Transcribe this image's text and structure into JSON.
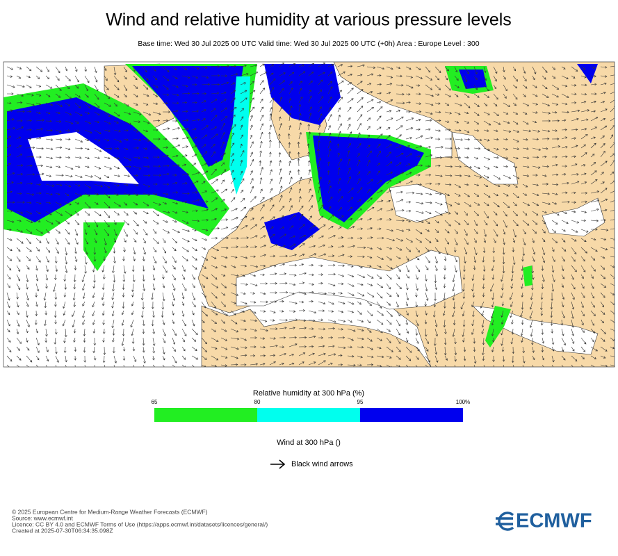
{
  "header": {
    "title": "Wind and relative humidity at various pressure levels",
    "subtitle": "Base time: Wed 30 Jul 2025 00 UTC Valid time: Wed 30 Jul 2025 00 UTC (+0h) Area : Europe Level : 300"
  },
  "humidity_legend": {
    "title": "Relative humidity at 300 hPa (%)",
    "ticks": [
      65,
      80,
      95,
      {
        "value": 100,
        "label": "100%"
      }
    ],
    "colors": [
      "#22ee22",
      "#00ffee",
      "#0000ee"
    ]
  },
  "wind_legend": {
    "title": "Wind at 300 hPa ()",
    "label": "Black wind arrows"
  },
  "footer": {
    "lines": [
      "© 2025 European Centre for Medium-Range Weather Forecasts (ECMWF)",
      "Source: www.ecmwf.int",
      "Licence: CC BY 4.0 and ECMWF Terms of Use (https://apps.ecmwf.int/datasets/licences/general/)",
      "Created at 2025-07-30T06:34:35.098Z"
    ],
    "logo": "ECMWF"
  }
}
